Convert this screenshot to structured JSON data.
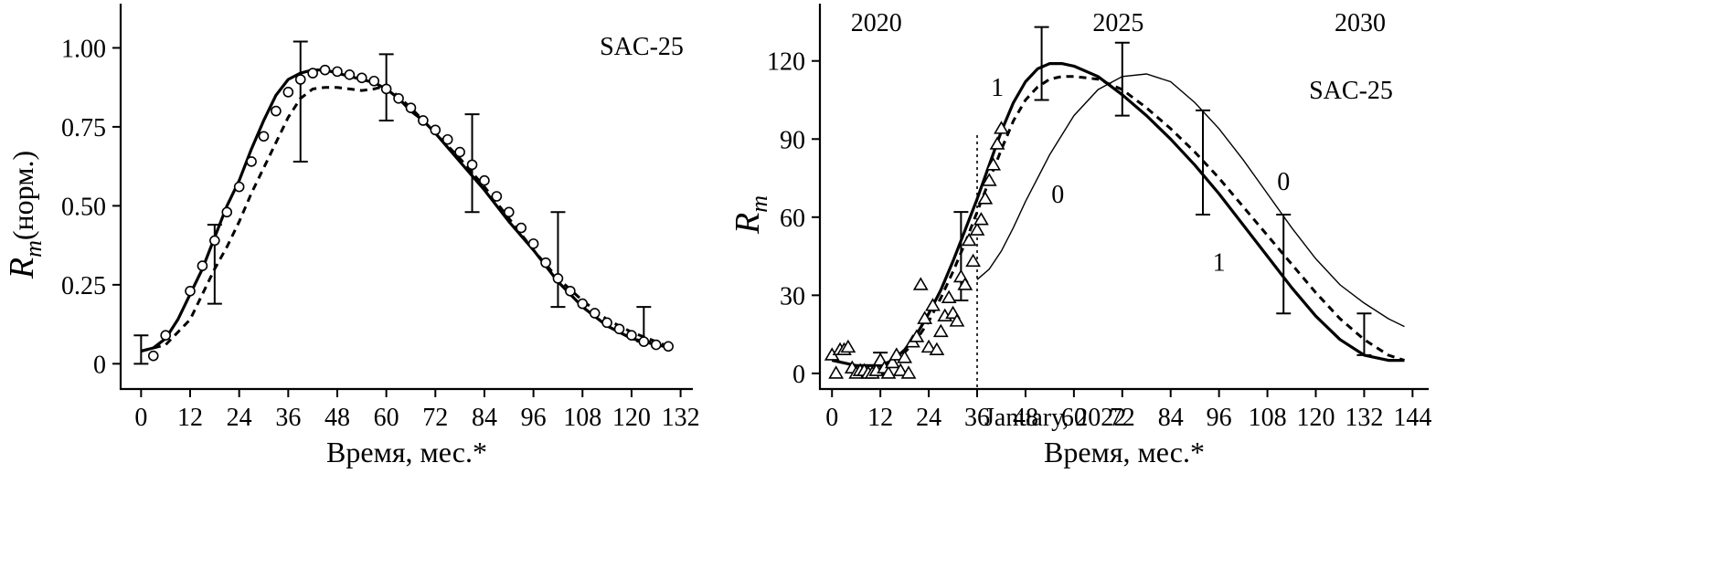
{
  "chart_data": [
    {
      "type": "line",
      "ylabel_main": "R",
      "ylabel_sub": "m",
      "ylabel_suffix": "(норм.)",
      "xlabel": "Время, мес.*",
      "annotation": "SAC-25",
      "xlim": [
        -5,
        135
      ],
      "ylim": [
        -0.08,
        1.14
      ],
      "xticks": [
        0,
        12,
        24,
        36,
        48,
        60,
        72,
        84,
        96,
        108,
        120,
        132
      ],
      "yticks": [
        0,
        0.25,
        0.5,
        0.75,
        1.0
      ],
      "ytick_labels": [
        "0",
        "0.25",
        "0.50",
        "0.75",
        "1.00"
      ],
      "series": [
        {
          "style": "solid",
          "x": [
            0,
            3,
            6,
            9,
            12,
            15,
            18,
            21,
            24,
            27,
            30,
            33,
            36,
            39,
            42,
            45,
            48,
            51,
            54,
            57,
            60,
            63,
            66,
            69,
            72,
            78,
            84,
            90,
            96,
            102,
            108,
            114,
            120,
            126,
            130
          ],
          "y": [
            0.04,
            0.05,
            0.08,
            0.14,
            0.22,
            0.3,
            0.4,
            0.5,
            0.58,
            0.68,
            0.77,
            0.85,
            0.9,
            0.92,
            0.93,
            0.93,
            0.92,
            0.91,
            0.9,
            0.89,
            0.87,
            0.84,
            0.8,
            0.77,
            0.73,
            0.64,
            0.55,
            0.45,
            0.36,
            0.26,
            0.18,
            0.12,
            0.08,
            0.06,
            0.05
          ]
        },
        {
          "style": "dashed",
          "x": [
            0,
            6,
            12,
            15,
            18,
            21,
            24,
            27,
            30,
            33,
            36,
            39,
            42,
            45,
            48,
            51,
            54,
            57,
            60,
            66,
            72,
            78,
            84,
            90,
            96,
            102,
            108,
            114,
            120,
            126,
            130
          ],
          "y": [
            0.04,
            0.06,
            0.14,
            0.22,
            0.3,
            0.37,
            0.45,
            0.54,
            0.62,
            0.7,
            0.78,
            0.84,
            0.87,
            0.875,
            0.875,
            0.87,
            0.865,
            0.87,
            0.88,
            0.81,
            0.73,
            0.65,
            0.56,
            0.46,
            0.36,
            0.27,
            0.2,
            0.14,
            0.1,
            0.07,
            0.05
          ]
        }
      ],
      "points": {
        "marker": "circle",
        "x": [
          3,
          6,
          12,
          15,
          18,
          21,
          24,
          27,
          30,
          33,
          36,
          39,
          42,
          45,
          48,
          51,
          54,
          57,
          60,
          63,
          66,
          69,
          72,
          75,
          78,
          81,
          84,
          87,
          90,
          93,
          96,
          99,
          102,
          105,
          108,
          111,
          114,
          117,
          120,
          123,
          126,
          129
        ],
        "y": [
          0.025,
          0.09,
          0.23,
          0.31,
          0.39,
          0.48,
          0.56,
          0.64,
          0.72,
          0.8,
          0.86,
          0.9,
          0.92,
          0.93,
          0.925,
          0.915,
          0.905,
          0.895,
          0.87,
          0.84,
          0.81,
          0.77,
          0.74,
          0.71,
          0.67,
          0.63,
          0.58,
          0.53,
          0.48,
          0.43,
          0.38,
          0.32,
          0.27,
          0.23,
          0.19,
          0.16,
          0.13,
          0.11,
          0.09,
          0.07,
          0.06,
          0.055
        ]
      },
      "error_bars": [
        {
          "x": 0,
          "low": 0.0,
          "high": 0.09
        },
        {
          "x": 18,
          "low": 0.19,
          "high": 0.44
        },
        {
          "x": 39,
          "low": 0.64,
          "high": 1.02
        },
        {
          "x": 60,
          "low": 0.77,
          "high": 0.98
        },
        {
          "x": 81,
          "low": 0.48,
          "high": 0.79
        },
        {
          "x": 102,
          "low": 0.18,
          "high": 0.48
        },
        {
          "x": 123,
          "low": 0.07,
          "high": 0.18
        }
      ]
    },
    {
      "type": "line",
      "ylabel_main": "R",
      "ylabel_sub": "m",
      "xlabel": "Время, мес.*",
      "annotation": "SAC-25",
      "vline_label": "January, 2022",
      "vline_x": 36,
      "xlim": [
        -3,
        148
      ],
      "ylim": [
        -6,
        142
      ],
      "xticks": [
        0,
        12,
        24,
        36,
        48,
        60,
        72,
        84,
        96,
        108,
        120,
        132,
        144
      ],
      "yticks": [
        0,
        30,
        60,
        90,
        120
      ],
      "top_labels": [
        {
          "x": 11,
          "label": "2020"
        },
        {
          "x": 71,
          "label": "2025"
        },
        {
          "x": 131,
          "label": "2030"
        }
      ],
      "curve_labels": [
        {
          "x": 41,
          "y": 110,
          "label": "1"
        },
        {
          "x": 56,
          "y": 69,
          "label": "0"
        },
        {
          "x": 112,
          "y": 74,
          "label": "0"
        },
        {
          "x": 96,
          "y": 43,
          "label": "1"
        }
      ],
      "series": [
        {
          "name": "1",
          "style": "solid",
          "x": [
            0,
            6,
            12,
            15,
            18,
            21,
            24,
            27,
            30,
            33,
            36,
            39,
            42,
            45,
            48,
            51,
            54,
            57,
            60,
            66,
            72,
            78,
            84,
            90,
            96,
            102,
            108,
            114,
            120,
            126,
            132,
            138,
            142
          ],
          "y": [
            5,
            3,
            3,
            5,
            9,
            15,
            23,
            32,
            43,
            55,
            67,
            80,
            93,
            104,
            112,
            117,
            119,
            119,
            118,
            114,
            107,
            99,
            90,
            80,
            69,
            57,
            45,
            33,
            22,
            13,
            7,
            5,
            5
          ]
        },
        {
          "name": "dashed",
          "style": "dashed",
          "x": [
            12,
            15,
            18,
            21,
            24,
            27,
            30,
            33,
            36,
            39,
            42,
            45,
            48,
            51,
            54,
            57,
            60,
            66,
            72,
            78,
            84,
            90,
            96,
            102,
            108,
            114,
            120,
            126,
            132,
            138,
            142
          ],
          "y": [
            3,
            5,
            8,
            13,
            20,
            29,
            39,
            50,
            62,
            74,
            86,
            97,
            105,
            110,
            113,
            114,
            114,
            113,
            109,
            102,
            94,
            85,
            75,
            64,
            53,
            42,
            31,
            21,
            13,
            7,
            5
          ]
        },
        {
          "name": "0",
          "style": "thin",
          "x": [
            36,
            39,
            42,
            45,
            48,
            54,
            60,
            66,
            72,
            78,
            84,
            90,
            96,
            102,
            108,
            114,
            120,
            126,
            132,
            138,
            142
          ],
          "y": [
            36,
            40,
            47,
            56,
            66,
            84,
            99,
            109,
            114,
            115,
            112,
            104,
            94,
            82,
            69,
            56,
            44,
            34,
            27,
            21,
            18
          ]
        }
      ],
      "points": {
        "marker": "triangle",
        "x": [
          0,
          1,
          2,
          3,
          4,
          5,
          6,
          7,
          8,
          9,
          10,
          11,
          12,
          13,
          14,
          15,
          16,
          17,
          18,
          19,
          20,
          21,
          22,
          23,
          24,
          25,
          26,
          27,
          28,
          29,
          30,
          31,
          32,
          33,
          34,
          35,
          36,
          37,
          38,
          39,
          40,
          41,
          42
        ],
        "y": [
          7,
          0,
          9,
          9,
          10,
          2,
          0,
          1,
          1,
          0,
          0,
          1,
          5,
          2,
          0,
          4,
          7,
          1,
          6,
          0,
          12,
          14,
          34,
          21,
          10,
          26,
          9,
          16,
          22,
          29,
          23,
          20,
          37,
          34,
          51,
          43,
          55,
          59,
          67,
          74,
          80,
          88,
          94
        ]
      },
      "error_bars": [
        {
          "x": 12,
          "low": 0,
          "high": 8
        },
        {
          "x": 32,
          "low": 28,
          "high": 62
        },
        {
          "x": 52,
          "low": 105,
          "high": 133
        },
        {
          "x": 72,
          "low": 99,
          "high": 127
        },
        {
          "x": 92,
          "low": 61,
          "high": 101
        },
        {
          "x": 112,
          "low": 23,
          "high": 61
        },
        {
          "x": 132,
          "low": 7,
          "high": 23
        }
      ]
    }
  ]
}
